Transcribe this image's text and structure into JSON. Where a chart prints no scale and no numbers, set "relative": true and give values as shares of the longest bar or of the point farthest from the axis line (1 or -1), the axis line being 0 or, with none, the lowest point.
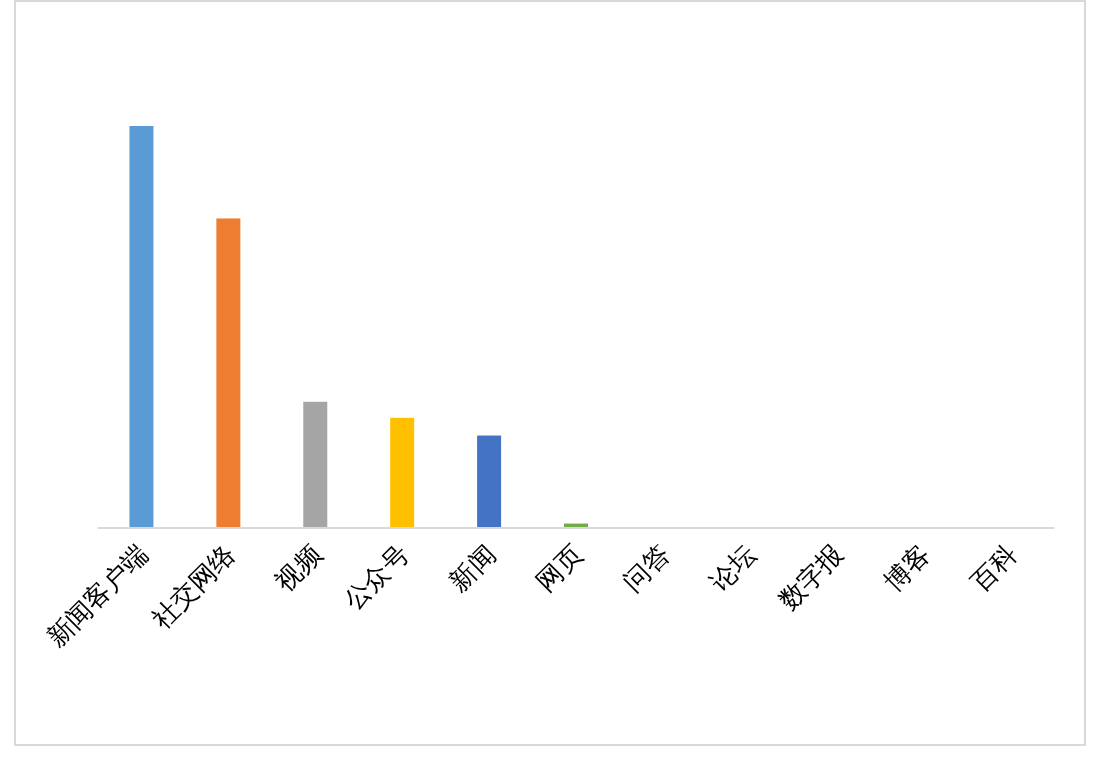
{
  "chart_data": {
    "type": "bar",
    "relative": true,
    "categories": [
      "新闻客户端",
      "社交网络",
      "视频",
      "公众号",
      "新闻",
      "网页",
      "问答",
      "论坛",
      "数字报",
      "博客",
      "百科"
    ],
    "values": [
      1,
      0.77,
      0.314,
      0.274,
      0.23,
      0.011,
      0,
      0,
      0,
      0,
      0
    ],
    "colors": [
      "#5b9bd5",
      "#ed7d31",
      "#a5a5a5",
      "#ffc000",
      "#4472c4",
      "#70ad47",
      "#264478",
      "#9e480e",
      "#636363",
      "#997300",
      "#255e91"
    ]
  }
}
